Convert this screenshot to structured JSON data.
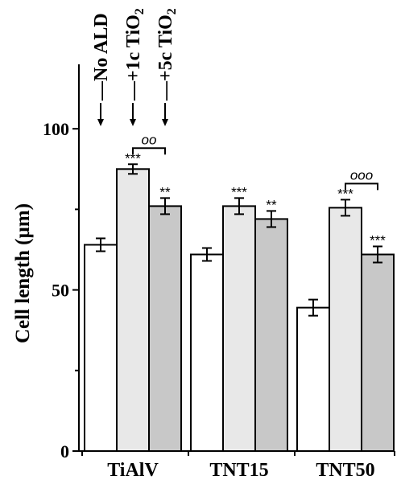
{
  "chart_data": {
    "type": "bar",
    "categories": [
      "TiAlV",
      "TNT15",
      "TNT50"
    ],
    "series": [
      {
        "name": "No ALD",
        "color": "#ffffff",
        "values": [
          64,
          61,
          44.5
        ],
        "errors": [
          2,
          2,
          2.5
        ],
        "significance": [
          "",
          "",
          ""
        ]
      },
      {
        "name": "+1c TiO2",
        "color": "#e8e8e8",
        "values": [
          87.5,
          76,
          75.5
        ],
        "errors": [
          1.5,
          2.5,
          2.5
        ],
        "significance": [
          "***",
          "***",
          "***"
        ]
      },
      {
        "name": "+5c TiO2",
        "color": "#c8c8c8",
        "values": [
          76,
          72,
          61
        ],
        "errors": [
          2.5,
          2.5,
          2.5
        ],
        "significance": [
          "**",
          "**",
          "***"
        ]
      }
    ],
    "comparisons": [
      {
        "category_index": 0,
        "from_series": 1,
        "to_series": 2,
        "label": "oo"
      },
      {
        "category_index": 2,
        "from_series": 1,
        "to_series": 2,
        "label": "ooo"
      }
    ],
    "ylabel": "Cell length (µm)",
    "ylim": [
      0,
      120
    ],
    "yticks": [
      0,
      50,
      100
    ],
    "legend_placement": "top, rotated labels with down arrows above first group",
    "grid": false
  }
}
